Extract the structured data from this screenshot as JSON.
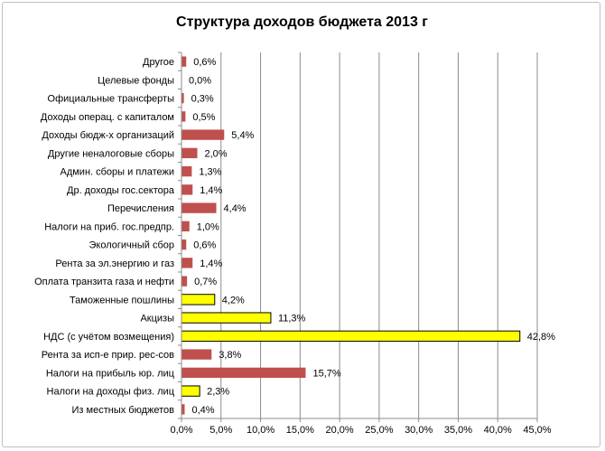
{
  "chart_data": {
    "type": "bar",
    "orientation": "horizontal",
    "title": "Структура доходов бюджета 2013 г",
    "xlabel": "",
    "ylabel": "",
    "xlim": [
      0,
      45
    ],
    "grid": "vertical",
    "legend": "none",
    "x_ticks": [
      "0,0%",
      "5,0%",
      "10,0%",
      "15,0%",
      "20,0%",
      "25,0%",
      "30,0%",
      "35,0%",
      "40,0%",
      "45,0%"
    ],
    "categories": [
      "Другое",
      "Целевые фонды",
      "Официальные трансферты",
      "Доходы операц. с капиталом",
      "Доходы бюдж-х организаций",
      "Другие неналоговые сборы",
      "Админ. сборы и платежи",
      "Др. доходы гос.сектора",
      "Перечисления",
      "Налоги на приб. гос.предпр.",
      "Экологичный сбор",
      "Рента за эл.энергию и газ",
      "Оплата транзита газа и нефти",
      "Таможенные пошлины",
      "Акцизы",
      "НДС (с учётом возмещения)",
      "Рента за исп-е прир. рес-сов",
      "Налоги на прибыль юр. лиц",
      "Налоги на доходы физ. лиц",
      "Из местных бюджетов"
    ],
    "values": [
      0.6,
      0.0,
      0.3,
      0.5,
      5.4,
      2.0,
      1.3,
      1.4,
      4.4,
      1.0,
      0.6,
      1.4,
      0.7,
      4.2,
      11.3,
      42.8,
      3.8,
      15.7,
      2.3,
      0.4
    ],
    "value_labels": [
      "0,6%",
      "0,0%",
      "0,3%",
      "0,5%",
      "5,4%",
      "2,0%",
      "1,3%",
      "1,4%",
      "4,4%",
      "1,0%",
      "0,6%",
      "1,4%",
      "0,7%",
      "4,2%",
      "11,3%",
      "42,8%",
      "3,8%",
      "15,7%",
      "2,3%",
      "0,4%"
    ],
    "highlighted": [
      false,
      false,
      false,
      false,
      false,
      false,
      false,
      false,
      false,
      false,
      false,
      false,
      false,
      true,
      true,
      true,
      false,
      false,
      true,
      false
    ],
    "colors": {
      "default_bar": "#c0504d",
      "highlight_bar": "#ffff00",
      "highlight_border": "#000000",
      "grid": "#8c8c8c",
      "axis": "#8c8c8c"
    }
  }
}
